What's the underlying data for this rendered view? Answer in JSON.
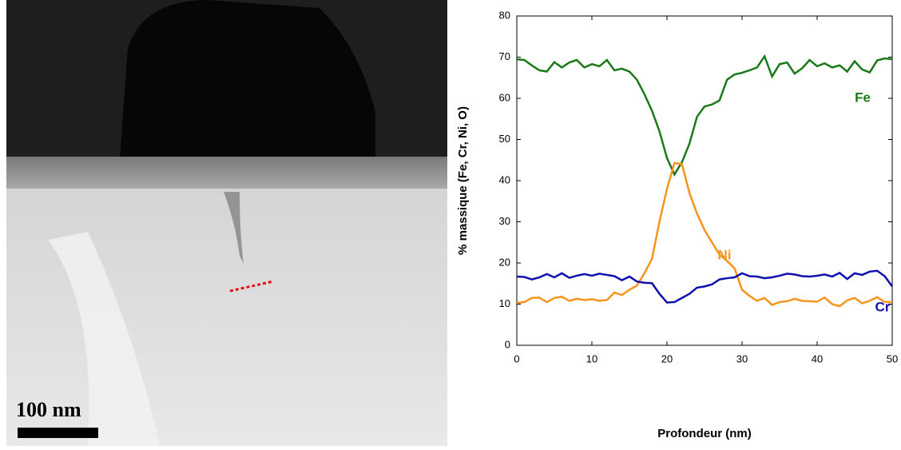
{
  "image": {
    "scale_label": "100 nm"
  },
  "chart_data": {
    "type": "line",
    "x_label": "Profondeur (nm)",
    "y_label": "% massique (Fe, Cr, Ni, O)",
    "x": [
      0,
      1,
      2,
      3,
      4,
      5,
      6,
      7,
      8,
      9,
      10,
      11,
      12,
      13,
      14,
      15,
      16,
      17,
      18,
      19,
      20,
      21,
      22,
      23,
      24,
      25,
      26,
      27,
      28,
      29,
      30,
      31,
      32,
      33,
      34,
      35,
      36,
      37,
      38,
      39,
      40,
      41,
      42,
      43,
      44,
      45,
      46,
      47,
      48,
      49,
      50
    ],
    "series": [
      {
        "name": "Fe",
        "color": "#1a7a1a",
        "values": [
          69.5,
          69.3,
          68,
          66.8,
          66.5,
          68.8,
          67.5,
          68.7,
          69.3,
          67.5,
          68.3,
          67.8,
          69.3,
          66.8,
          67.2,
          66.5,
          64.5,
          61,
          57,
          52,
          45.5,
          41.5,
          44.5,
          49,
          55.5,
          58,
          58.5,
          59.5,
          64.5,
          65.8,
          66.2,
          66.8,
          67.5,
          70.2,
          65.3,
          68.3,
          68.7,
          66,
          67.3,
          69.3,
          67.8,
          68.5,
          67.5,
          68,
          66.5,
          69,
          67,
          66.3,
          69.2,
          69.7,
          69.5
        ]
      },
      {
        "name": "Ni",
        "color": "#f7941d",
        "values": [
          10.3,
          10.5,
          11.5,
          11.6,
          10.5,
          11.5,
          11.8,
          10.8,
          11.3,
          11,
          11.2,
          10.8,
          11,
          12.8,
          12.2,
          13.5,
          14.5,
          17.5,
          21,
          30,
          38,
          44.3,
          44,
          37,
          32,
          28,
          25,
          22,
          20.5,
          18.7,
          13.5,
          12,
          10.8,
          11.5,
          9.8,
          10.5,
          10.7,
          11.3,
          10.8,
          10.7,
          10.6,
          11.6,
          10,
          9.5,
          10.9,
          11.5,
          10.2,
          10.8,
          11.7,
          10.5,
          10.5
        ]
      },
      {
        "name": "Cr",
        "color": "#1010b0",
        "values": [
          16.7,
          16.6,
          16,
          16.5,
          17.3,
          16.5,
          17.5,
          16.4,
          16.9,
          17.3,
          16.9,
          17.4,
          17.1,
          16.8,
          15.8,
          16.7,
          15.5,
          15.2,
          15.1,
          12.5,
          10.4,
          10.5,
          11.5,
          12.5,
          14,
          14.3,
          14.8,
          16,
          16.3,
          16.5,
          17.5,
          16.8,
          16.7,
          16.3,
          16.5,
          16.9,
          17.4,
          17.2,
          16.8,
          16.7,
          16.9,
          17.2,
          16.7,
          17.6,
          16.1,
          17.5,
          17.1,
          17.9,
          18.1,
          16.8,
          14.3
        ]
      }
    ],
    "xlim": [
      0,
      50
    ],
    "ylim": [
      0,
      80
    ],
    "xticks": [
      0,
      10,
      20,
      30,
      40,
      50
    ],
    "yticks": [
      0,
      10,
      20,
      30,
      40,
      50,
      60,
      70,
      80
    ]
  }
}
